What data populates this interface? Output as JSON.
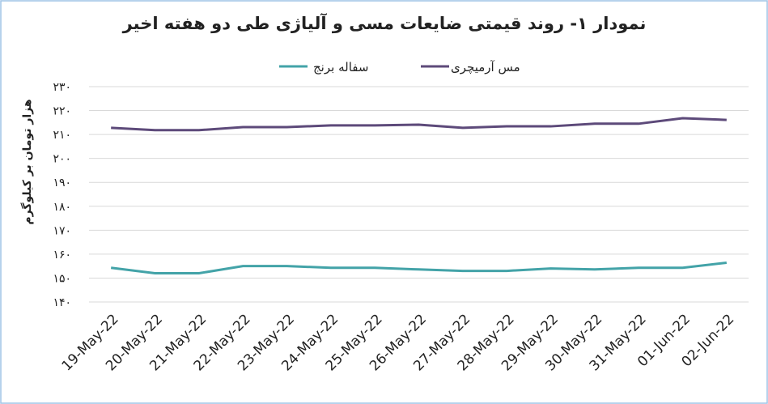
{
  "chart_data": {
    "type": "line",
    "title": "نمودار ۱- روند قیمتی ضایعات مسی و آلیاژی طی دو هفته اخیر",
    "y_label": "هزار تومان بر کیلوگرم",
    "categories": [
      "19-May-22",
      "20-May-22",
      "21-May-22",
      "22-May-22",
      "23-May-22",
      "24-May-22",
      "25-May-22",
      "26-May-22",
      "27-May-22",
      "28-May-22",
      "29-May-22",
      "30-May-22",
      "31-May-22",
      "01-Jun-22",
      "02-Jun-22"
    ],
    "series": [
      {
        "name": "مس آرمیچری",
        "color": "#5d4a7a",
        "values": [
          212.8,
          211.8,
          211.8,
          213.1,
          213.1,
          213.8,
          213.8,
          214.1,
          212.8,
          213.4,
          213.4,
          214.5,
          214.5,
          216.8,
          216.1
        ]
      },
      {
        "name": "سفاله برنج",
        "color": "#43a3a8",
        "values": [
          154.3,
          152,
          152,
          155,
          155,
          154.3,
          154.3,
          153.6,
          153,
          153,
          154,
          153.6,
          154.3,
          154.3,
          156.4
        ]
      }
    ],
    "ylim": [
      140,
      230
    ],
    "yticks": [
      {
        "value": 140,
        "label": "۱۴۰"
      },
      {
        "value": 150,
        "label": "۱۵۰"
      },
      {
        "value": 160,
        "label": "۱۶۰"
      },
      {
        "value": 170,
        "label": "۱۷۰"
      },
      {
        "value": 180,
        "label": "۱۸۰"
      },
      {
        "value": 190,
        "label": "۱۹۰"
      },
      {
        "value": 200,
        "label": "۲۰۰"
      },
      {
        "value": 210,
        "label": "۲۱۰"
      },
      {
        "value": 220,
        "label": "۲۲۰"
      },
      {
        "value": 230,
        "label": "۲۳۰"
      }
    ],
    "grid": true
  }
}
